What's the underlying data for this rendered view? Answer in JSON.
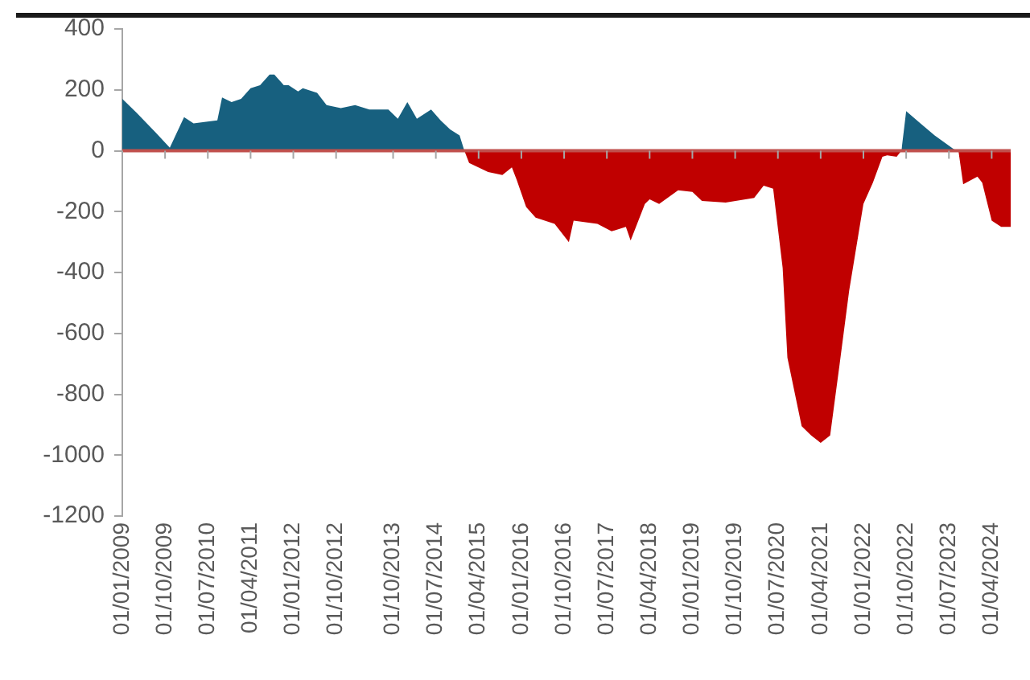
{
  "chart_data": {
    "type": "area",
    "marker": "none",
    "grid": false,
    "legend": false,
    "xlim": [
      "2009-01",
      "2024-08"
    ],
    "xticks": [
      {
        "value": "2009-01",
        "label": "01/01/2009"
      },
      {
        "value": "2009-10",
        "label": "01/10/2009"
      },
      {
        "value": "2010-07",
        "label": "01/07/2010"
      },
      {
        "value": "2011-04",
        "label": "01/04/2011"
      },
      {
        "value": "2012-01",
        "label": "01/01/2012"
      },
      {
        "value": "2012-10",
        "label": "01/10/2012"
      },
      {
        "value": "2013-10",
        "label": "01/10/2013"
      },
      {
        "value": "2014-07",
        "label": "01/07/2014"
      },
      {
        "value": "2015-04",
        "label": "01/04/2015"
      },
      {
        "value": "2016-01",
        "label": "01/01/2016"
      },
      {
        "value": "2016-10",
        "label": "01/10/2016"
      },
      {
        "value": "2017-07",
        "label": "01/07/2017"
      },
      {
        "value": "2018-04",
        "label": "01/04/2018"
      },
      {
        "value": "2019-01",
        "label": "01/01/2019"
      },
      {
        "value": "2019-10",
        "label": "01/10/2019"
      },
      {
        "value": "2020-07",
        "label": "01/07/2020"
      },
      {
        "value": "2021-04",
        "label": "01/04/2021"
      },
      {
        "value": "2022-01",
        "label": "01/01/2022"
      },
      {
        "value": "2022-10",
        "label": "01/10/2022"
      },
      {
        "value": "2023-07",
        "label": "01/07/2023"
      },
      {
        "value": "2024-04",
        "label": "01/04/2024"
      }
    ],
    "ylim": [
      -1200,
      400
    ],
    "yticks": [
      -1200,
      -1000,
      -800,
      -600,
      -400,
      -200,
      0,
      200,
      400
    ],
    "ref_lines": [
      {
        "axis": "y",
        "value": 0,
        "color": "#c0504d"
      }
    ],
    "series": [
      {
        "color": "#17607f",
        "x": [
          "2009-01",
          "2009-04",
          "2009-08",
          "2009-11",
          "2010-02",
          "2010-04",
          "2010-09",
          "2010-10",
          "2010-12",
          "2011-02",
          "2011-04",
          "2011-06",
          "2011-08",
          "2011-09",
          "2011-11",
          "2011-12",
          "2012-02",
          "2012-03",
          "2012-06",
          "2012-08",
          "2012-11",
          "2013-02",
          "2013-05",
          "2013-09",
          "2013-11",
          "2014-01",
          "2014-03",
          "2014-06",
          "2014-08",
          "2014-10",
          "2014-12",
          "2015-01"
        ],
        "values": [
          170,
          125,
          60,
          10,
          110,
          90,
          100,
          175,
          160,
          170,
          205,
          215,
          250,
          250,
          215,
          215,
          195,
          205,
          190,
          150,
          140,
          150,
          135,
          135,
          105,
          160,
          105,
          135,
          100,
          70,
          50,
          0
        ]
      },
      {
        "color": "#c00000",
        "x": [
          "2015-01",
          "2015-02",
          "2015-06",
          "2015-09",
          "2015-11",
          "2015-12",
          "2016-02",
          "2016-04",
          "2016-08",
          "2016-11",
          "2016-12",
          "2017-05",
          "2017-08",
          "2017-11",
          "2017-12",
          "2018-03",
          "2018-04",
          "2018-06",
          "2018-10",
          "2019-01",
          "2019-03",
          "2019-08",
          "2020-02",
          "2020-04",
          "2020-06",
          "2020-08",
          "2020-09",
          "2020-12",
          "2021-02",
          "2021-04",
          "2021-06",
          "2021-08",
          "2021-10",
          "2022-01",
          "2022-03",
          "2022-05",
          "2022-06",
          "2022-08",
          "2022-09"
        ],
        "values": [
          0,
          -40,
          -70,
          -80,
          -55,
          -95,
          -185,
          -220,
          -240,
          -300,
          -230,
          -240,
          -265,
          -250,
          -295,
          -175,
          -160,
          -175,
          -130,
          -135,
          -165,
          -170,
          -155,
          -115,
          -125,
          -385,
          -680,
          -905,
          -935,
          -960,
          -935,
          -700,
          -460,
          -175,
          -105,
          -20,
          -15,
          -20,
          0
        ]
      },
      {
        "color": "#17607f",
        "x": [
          "2022-09",
          "2022-10",
          "2023-01",
          "2023-04",
          "2023-08",
          "2023-09"
        ],
        "values": [
          0,
          130,
          90,
          50,
          5,
          0
        ]
      },
      {
        "color": "#c00000",
        "x": [
          "2023-09",
          "2023-10",
          "2024-01",
          "2024-02",
          "2024-04",
          "2024-06",
          "2024-08"
        ],
        "values": [
          0,
          -110,
          -85,
          -105,
          -230,
          -250,
          -250
        ]
      }
    ]
  }
}
